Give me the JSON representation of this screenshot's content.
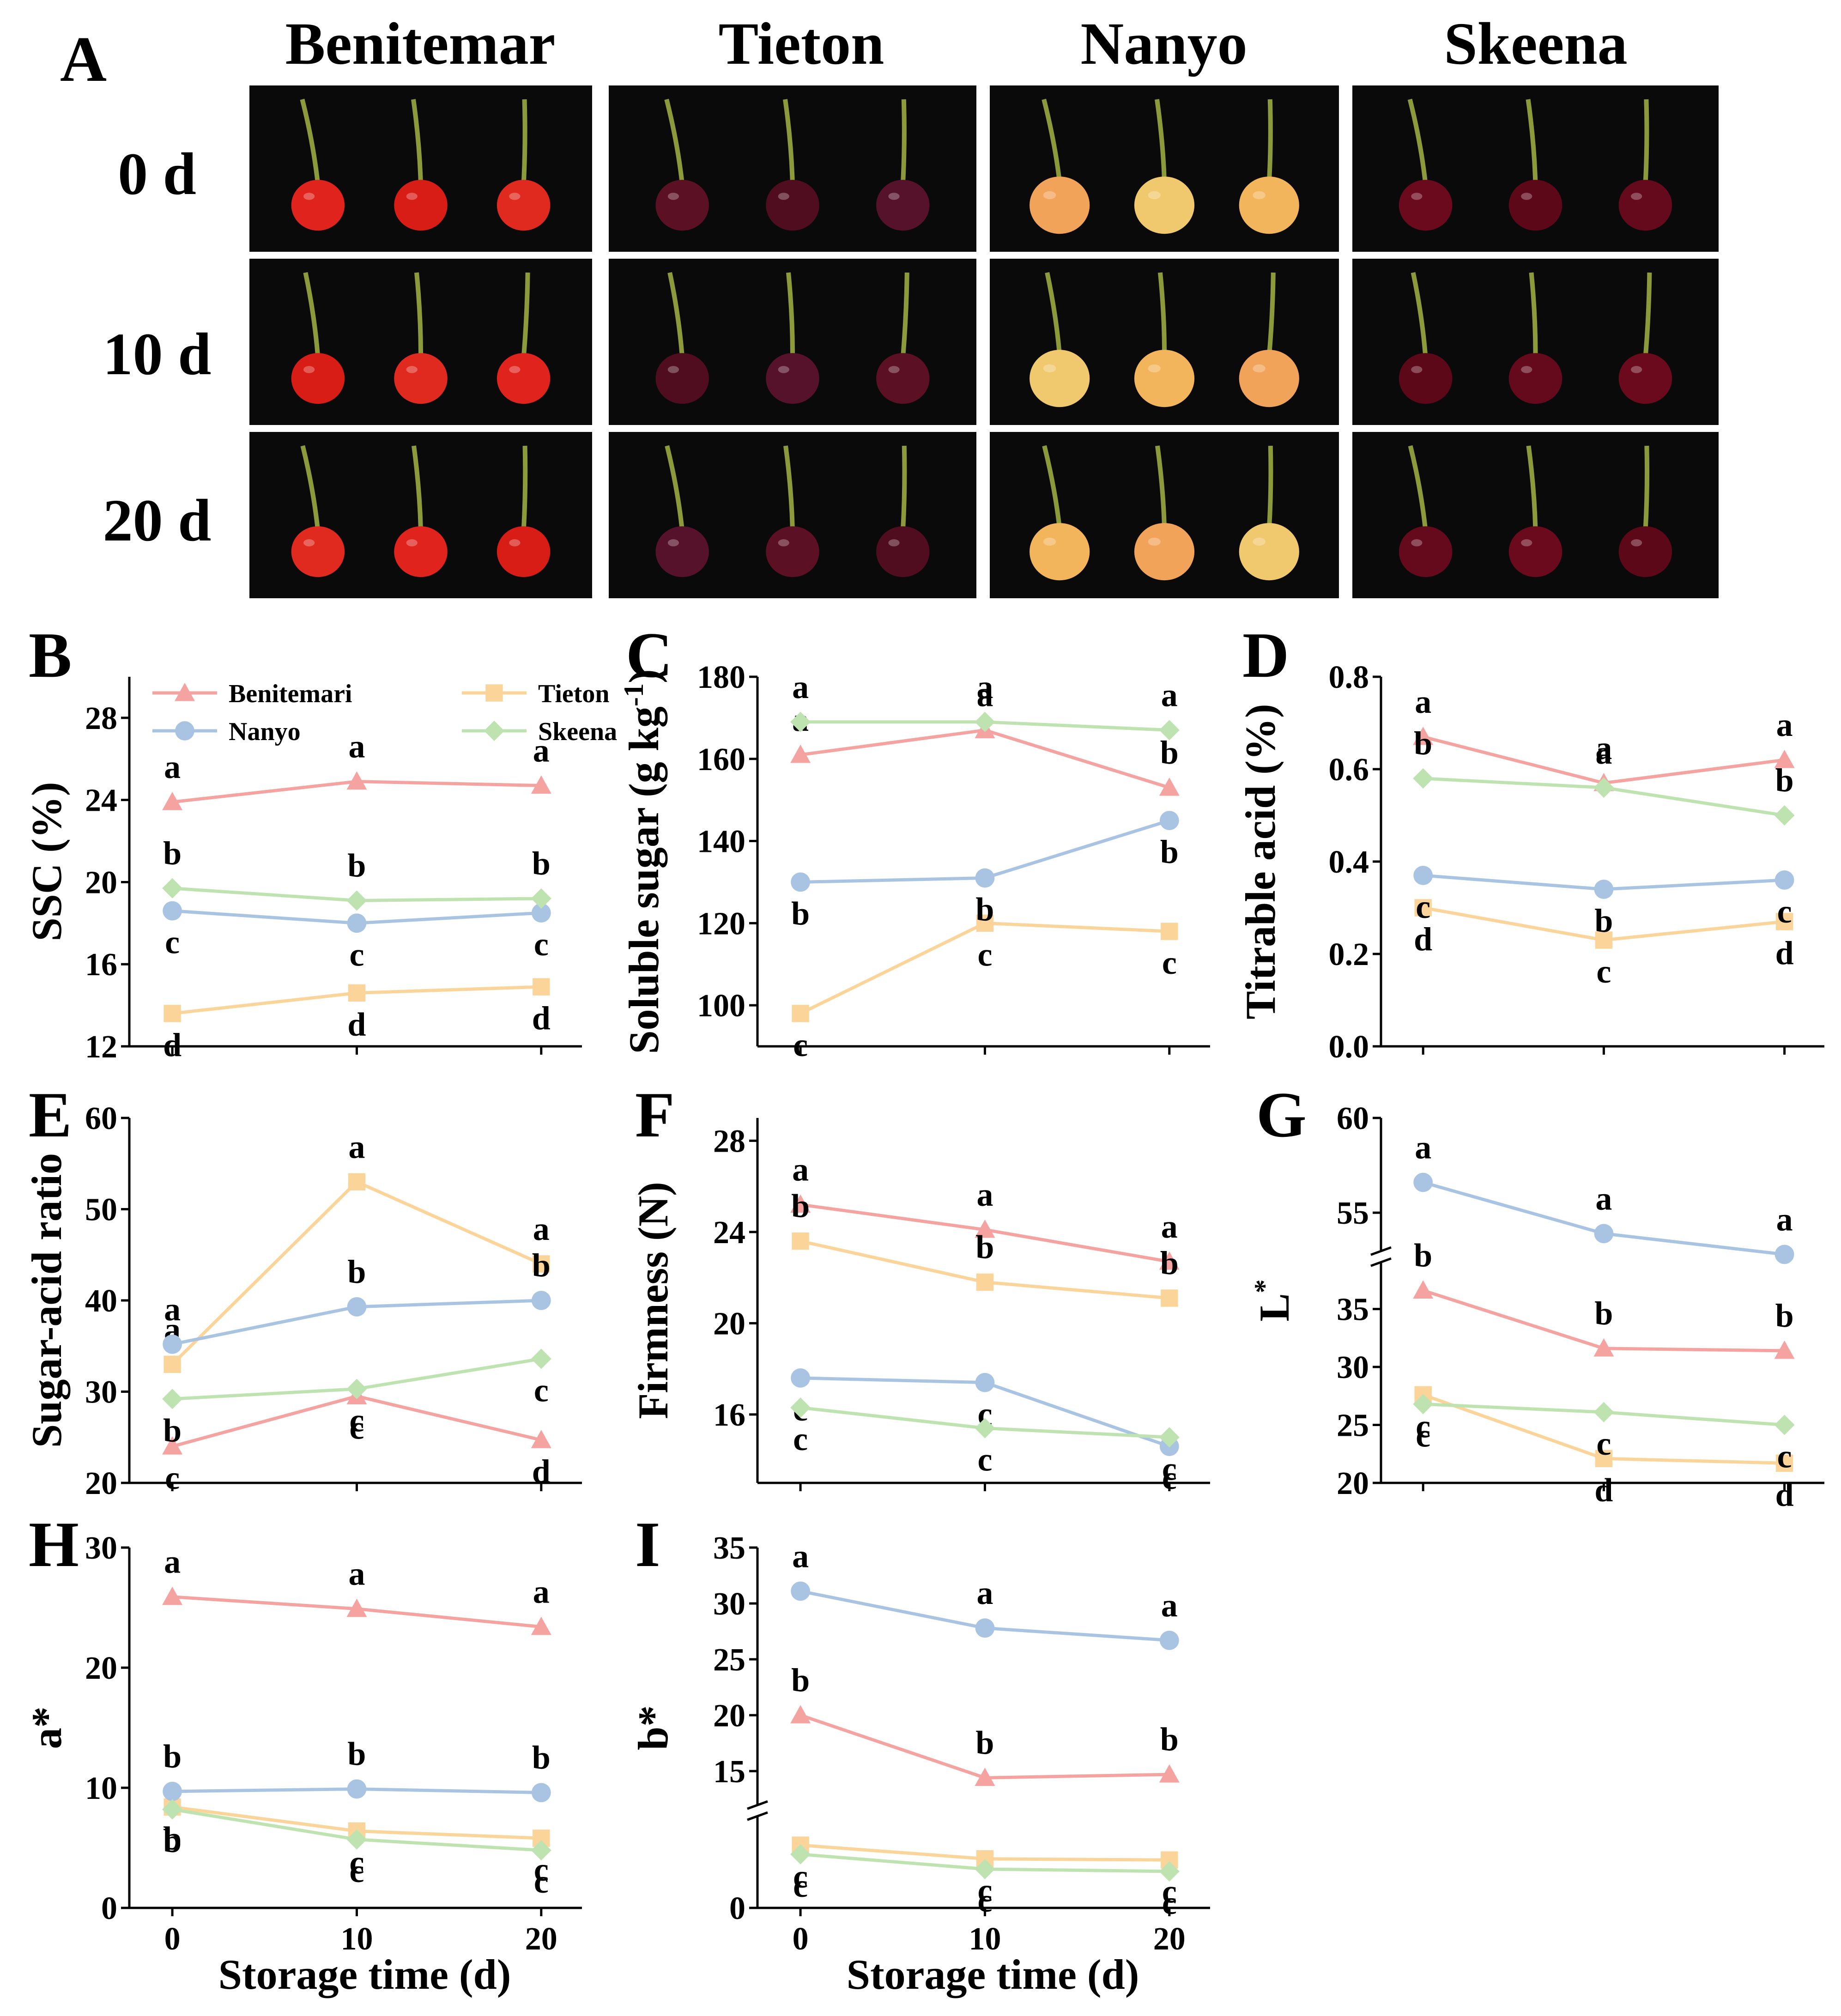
{
  "figure": {
    "photo_panel": {
      "label": "A",
      "varieties": [
        "Benitemar",
        "Tieton",
        "Nanyo",
        "Skeena"
      ],
      "days": [
        "0 d",
        "10 d",
        "20 d"
      ],
      "fruit_colors": {
        "Benitemar": [
          "#e0231d",
          "#d81c16",
          "#e02a1f"
        ],
        "Tieton": [
          "#5b1023",
          "#4f0d1f",
          "#55122a"
        ],
        "Nanyo": [
          "#f2a35a",
          "#f0c86d",
          "#f3b55b"
        ],
        "Skeena": [
          "#6b0a1d",
          "#5c0818",
          "#640a1c"
        ]
      }
    },
    "xlabel": "Storage time (d)",
    "x_ticks": [
      "0",
      "10",
      "20"
    ]
  },
  "legend": {
    "items": [
      {
        "name": "Benitemari",
        "color": "#f4a3a0",
        "marker": "triangle"
      },
      {
        "name": "Tieton",
        "color": "#fbd49a",
        "marker": "square"
      },
      {
        "name": "Nanyo",
        "color": "#a9c4e2",
        "marker": "circle"
      },
      {
        "name": "Skeena",
        "color": "#bfe3b0",
        "marker": "diamond"
      }
    ]
  },
  "chart_data": [
    {
      "panel": "B",
      "type": "line",
      "ylabel": "SSC (%)",
      "x": [
        0,
        10,
        20
      ],
      "ylim": [
        12,
        30
      ],
      "yticks": [
        12,
        16,
        20,
        24,
        28
      ],
      "series": [
        {
          "name": "Benitemari",
          "values": [
            23.9,
            24.9,
            24.7
          ],
          "letters": [
            "a",
            "a",
            "a"
          ]
        },
        {
          "name": "Tieton",
          "values": [
            13.6,
            14.6,
            14.9
          ],
          "letters": [
            "d",
            "d",
            "d"
          ]
        },
        {
          "name": "Nanyo",
          "values": [
            18.6,
            18.0,
            18.5
          ],
          "letters": [
            "c",
            "c",
            "c"
          ]
        },
        {
          "name": "Skeena",
          "values": [
            19.7,
            19.1,
            19.2
          ],
          "letters": [
            "b",
            "b",
            "b"
          ]
        }
      ]
    },
    {
      "panel": "C",
      "type": "line",
      "ylabel": "Soluble sugar (g kg",
      "ylabel_sup": "-1",
      "ylabel_end": ")",
      "x": [
        0,
        10,
        20
      ],
      "ylim": [
        90,
        180
      ],
      "yticks": [
        100,
        120,
        140,
        160,
        180
      ],
      "series": [
        {
          "name": "Benitemari",
          "values": [
            161,
            167,
            153
          ],
          "letters": [
            "a",
            "a",
            "b"
          ]
        },
        {
          "name": "Tieton",
          "values": [
            98,
            120,
            118
          ],
          "letters": [
            "c",
            "c",
            "c"
          ]
        },
        {
          "name": "Nanyo",
          "values": [
            130,
            131,
            145
          ],
          "letters": [
            "b",
            "b",
            "b"
          ]
        },
        {
          "name": "Skeena",
          "values": [
            169,
            169,
            167
          ],
          "letters": [
            "a",
            "a",
            "a"
          ]
        }
      ]
    },
    {
      "panel": "D",
      "type": "line",
      "ylabel": "Titrable acid (%)",
      "x": [
        0,
        10,
        20
      ],
      "ylim": [
        0.0,
        0.8
      ],
      "yticks": [
        "0.0",
        "0.2",
        "0.4",
        "0.6",
        "0.8"
      ],
      "series": [
        {
          "name": "Benitemari",
          "values": [
            0.67,
            0.57,
            0.62
          ],
          "letters": [
            "a",
            "a",
            "a"
          ]
        },
        {
          "name": "Tieton",
          "values": [
            0.3,
            0.23,
            0.27
          ],
          "letters": [
            "d",
            "c",
            "d"
          ]
        },
        {
          "name": "Nanyo",
          "values": [
            0.37,
            0.34,
            0.36
          ],
          "letters": [
            "c",
            "b",
            "c"
          ]
        },
        {
          "name": "Skeena",
          "values": [
            0.58,
            0.56,
            0.5
          ],
          "letters": [
            "b",
            "a",
            "b"
          ]
        }
      ]
    },
    {
      "panel": "E",
      "type": "line",
      "ylabel": "Sugar-acid ratio",
      "x": [
        0,
        10,
        20
      ],
      "ylim": [
        20,
        60
      ],
      "yticks": [
        20,
        30,
        40,
        50,
        60
      ],
      "series": [
        {
          "name": "Benitemari",
          "values": [
            24.0,
            29.5,
            24.7
          ],
          "letters": [
            "c",
            "c",
            "d"
          ]
        },
        {
          "name": "Tieton",
          "values": [
            33.0,
            53.0,
            44.0
          ],
          "letters": [
            "a",
            "a",
            "a"
          ]
        },
        {
          "name": "Nanyo",
          "values": [
            35.2,
            39.3,
            40.0
          ],
          "letters": [
            "a",
            "b",
            "b"
          ]
        },
        {
          "name": "Skeena",
          "values": [
            29.2,
            30.3,
            33.6
          ],
          "letters": [
            "b",
            "c",
            "c"
          ]
        }
      ]
    },
    {
      "panel": "F",
      "type": "line",
      "ylabel": "Firmness (N)",
      "x": [
        0,
        10,
        20
      ],
      "ylim": [
        13,
        29
      ],
      "yticks": [
        16,
        20,
        24,
        28
      ],
      "series": [
        {
          "name": "Benitemari",
          "values": [
            25.2,
            24.1,
            22.7
          ],
          "letters": [
            "a",
            "a",
            "a"
          ]
        },
        {
          "name": "Tieton",
          "values": [
            23.6,
            21.8,
            21.1
          ],
          "letters": [
            "b",
            "b",
            "b"
          ]
        },
        {
          "name": "Nanyo",
          "values": [
            17.6,
            17.4,
            14.6
          ],
          "letters": [
            "c",
            "c",
            "c"
          ]
        },
        {
          "name": "Skeena",
          "values": [
            16.3,
            15.4,
            15.0
          ],
          "letters": [
            "c",
            "c",
            "c"
          ]
        }
      ]
    },
    {
      "panel": "G",
      "type": "line",
      "ylabel": "L",
      "ylabel_sup": "*",
      "x": [
        0,
        10,
        20
      ],
      "axis_break": [
        39,
        53
      ],
      "ylim_lower": [
        20,
        39
      ],
      "ylim_upper": [
        53,
        60
      ],
      "yticks": [
        20,
        25,
        30,
        35,
        55,
        60
      ],
      "series": [
        {
          "name": "Benitemari",
          "values": [
            36.6,
            31.6,
            31.4
          ],
          "letters": [
            "b",
            "b",
            "b"
          ]
        },
        {
          "name": "Tieton",
          "values": [
            27.6,
            22.1,
            21.7
          ],
          "letters": [
            "c",
            "d",
            "d"
          ]
        },
        {
          "name": "Nanyo",
          "values": [
            56.6,
            53.9,
            52.8
          ],
          "letters": [
            "a",
            "a",
            "a"
          ]
        },
        {
          "name": "Skeena",
          "values": [
            26.8,
            26.1,
            25.0
          ],
          "letters": [
            "c",
            "c",
            "c"
          ]
        }
      ]
    },
    {
      "panel": "H",
      "type": "line",
      "ylabel": "a*",
      "x": [
        0,
        10,
        20
      ],
      "ylim": [
        0,
        30
      ],
      "yticks": [
        0,
        10,
        20,
        30
      ],
      "series": [
        {
          "name": "Benitemari",
          "values": [
            25.9,
            24.9,
            23.4
          ],
          "letters": [
            "a",
            "a",
            "a"
          ]
        },
        {
          "name": "Tieton",
          "values": [
            8.4,
            6.4,
            5.8
          ],
          "letters": [
            "b",
            "c",
            "c"
          ]
        },
        {
          "name": "Nanyo",
          "values": [
            9.7,
            9.9,
            9.6
          ],
          "letters": [
            "b",
            "b",
            "b"
          ]
        },
        {
          "name": "Skeena",
          "values": [
            8.2,
            5.7,
            4.8
          ],
          "letters": [
            "b",
            "c",
            "c"
          ]
        }
      ]
    },
    {
      "panel": "I",
      "type": "line",
      "ylabel": "b*",
      "x": [
        0,
        10,
        20
      ],
      "axis_break": [
        8,
        12
      ],
      "ylim_lower": [
        0,
        8
      ],
      "ylim_upper": [
        12,
        35
      ],
      "yticks": [
        0,
        15,
        20,
        25,
        30,
        35
      ],
      "series": [
        {
          "name": "Benitemari",
          "values": [
            20.0,
            14.4,
            14.7
          ],
          "letters": [
            "b",
            "b",
            "b"
          ]
        },
        {
          "name": "Tieton",
          "values": [
            5.5,
            4.3,
            4.2
          ],
          "letters": [
            "c",
            "c",
            "c"
          ]
        },
        {
          "name": "Nanyo",
          "values": [
            31.1,
            27.8,
            26.7
          ],
          "letters": [
            "a",
            "a",
            "a"
          ]
        },
        {
          "name": "Skeena",
          "values": [
            4.7,
            3.4,
            3.2
          ],
          "letters": [
            "c",
            "c",
            "c"
          ]
        }
      ]
    }
  ]
}
